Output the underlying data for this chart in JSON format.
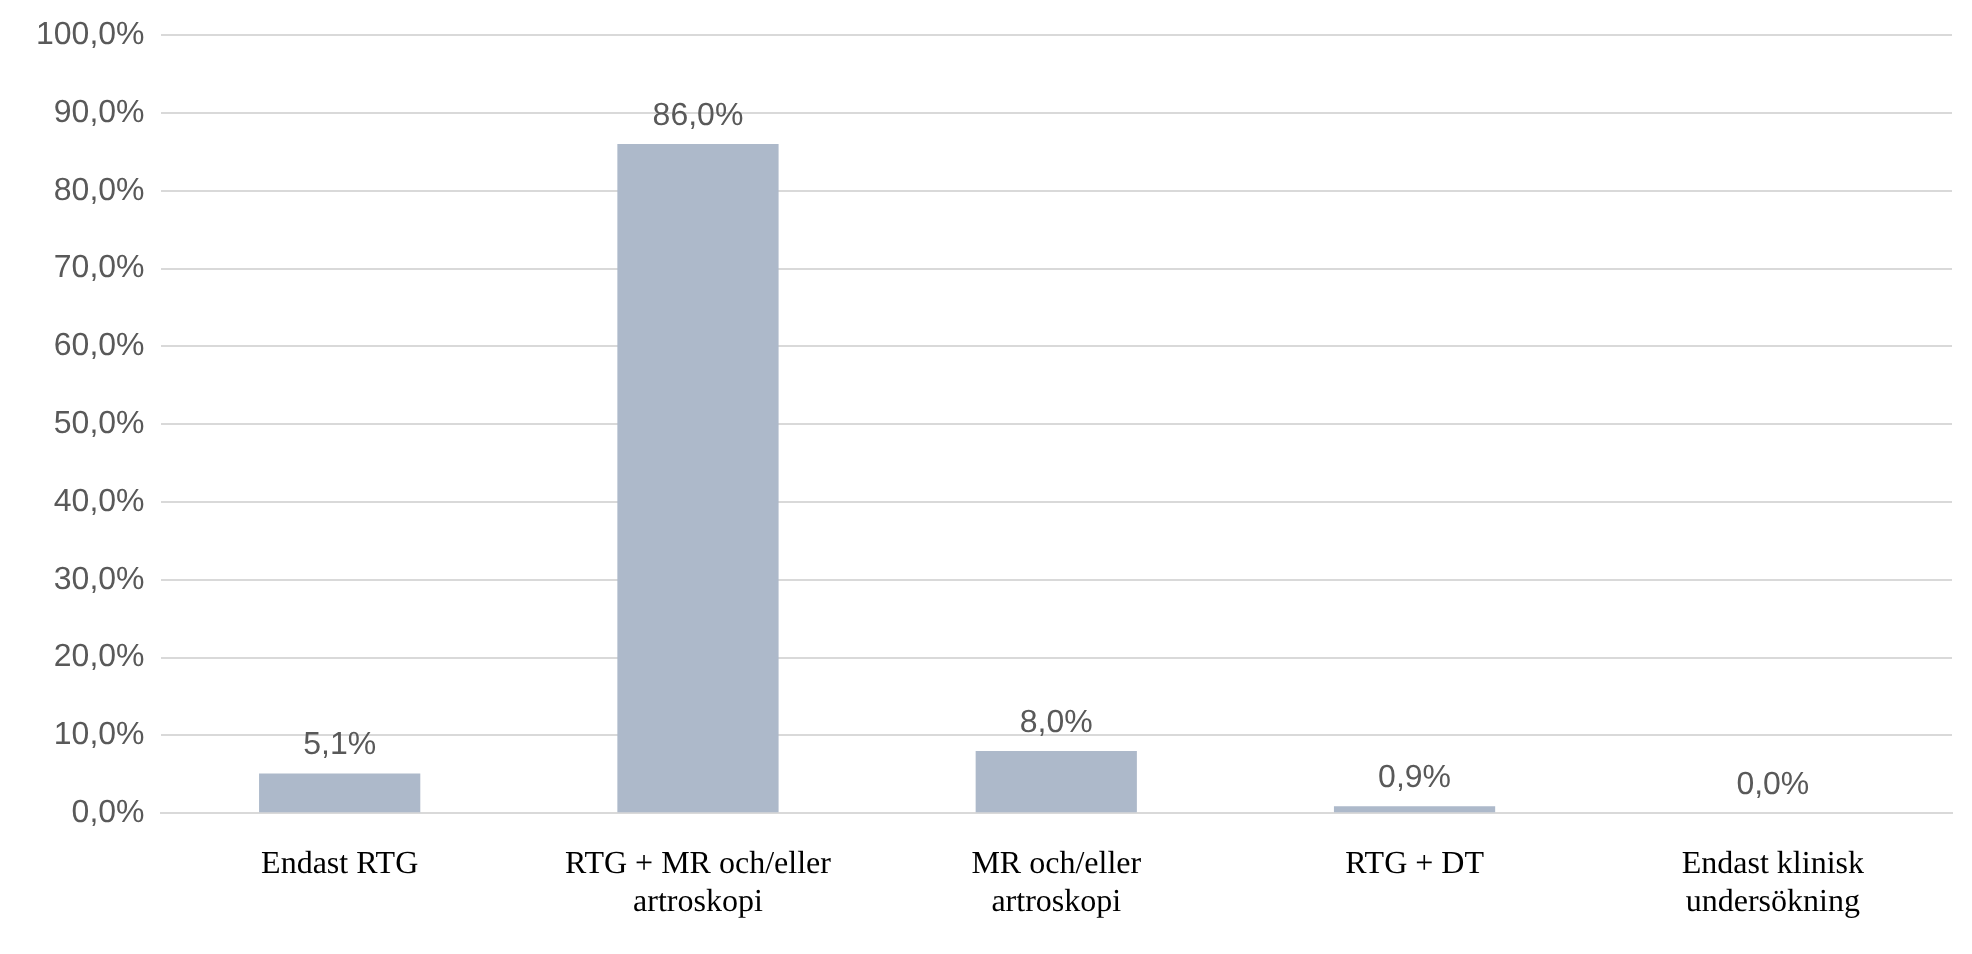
{
  "chart_data": {
    "type": "bar",
    "categories": [
      "Endast RTG",
      "RTG + MR och/eller artroskopi",
      "MR och/eller artroskopi",
      "RTG + DT",
      "Endast klinisk undersökning"
    ],
    "values": [
      5.1,
      86.0,
      8.0,
      0.9,
      0.0
    ],
    "value_labels": [
      "5,1%",
      "86,0%",
      "8,0%",
      "0,9%",
      "0,0%"
    ],
    "color": "#adb9ca",
    "ylim": [
      0,
      100
    ],
    "yticks": [
      {
        "value": 0,
        "label": "0,0%"
      },
      {
        "value": 10,
        "label": "10,0%"
      },
      {
        "value": 20,
        "label": "20,0%"
      },
      {
        "value": 30,
        "label": "30,0%"
      },
      {
        "value": 40,
        "label": "40,0%"
      },
      {
        "value": 50,
        "label": "50,0%"
      },
      {
        "value": 60,
        "label": "60,0%"
      },
      {
        "value": 70,
        "label": "70,0%"
      },
      {
        "value": 80,
        "label": "80,0%"
      },
      {
        "value": 90,
        "label": "90,0%"
      },
      {
        "value": 100,
        "label": "100,0%"
      }
    ],
    "grid": "y",
    "legend": false
  }
}
